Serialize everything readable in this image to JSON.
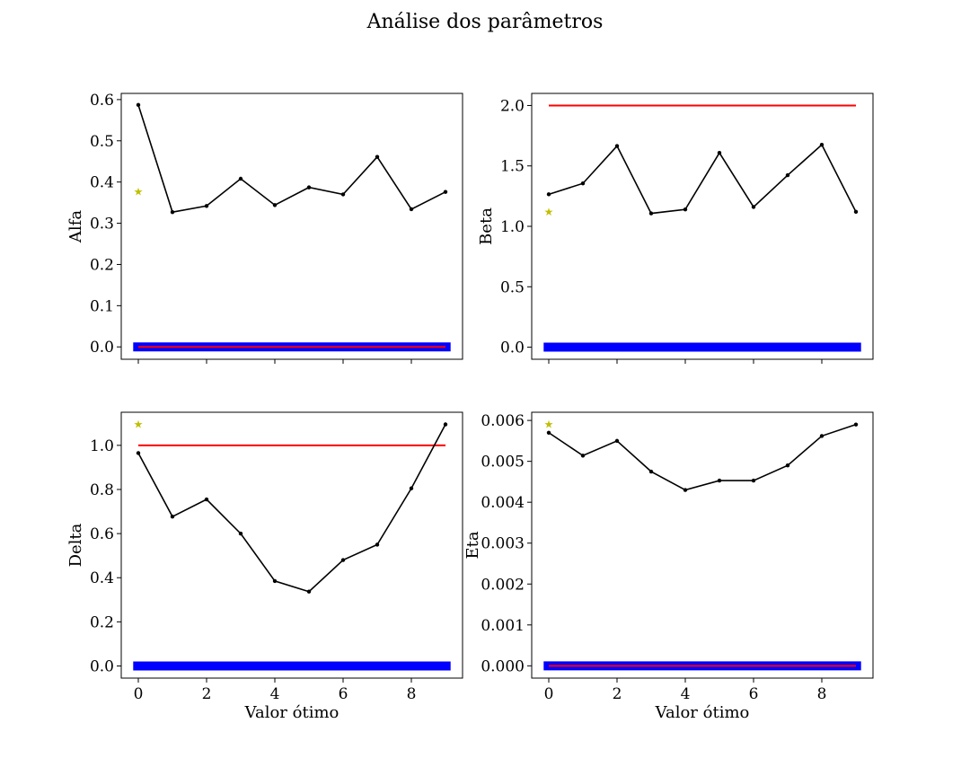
{
  "figure": {
    "title": "Análise dos parâmetros",
    "colors": {
      "series": "#000000",
      "upper": "#ff0000",
      "lower": "#0000ff",
      "reference": "#bfbf00"
    }
  },
  "chart_data": [
    {
      "type": "line",
      "title": "",
      "xlabel": "",
      "ylabel": "Alfa",
      "x": [
        0,
        1,
        2,
        3,
        4,
        5,
        6,
        7,
        8,
        9
      ],
      "values": [
        0.587,
        0.327,
        0.342,
        0.408,
        0.344,
        0.387,
        0.37,
        0.461,
        0.334,
        0.376
      ],
      "upper_line": 0.0,
      "lower_band": 0.0,
      "reference_point": {
        "x": 0,
        "y": 0.376
      },
      "xlim": [
        -0.5,
        9.5
      ],
      "ylim": [
        -0.03,
        0.615
      ],
      "yticks": [
        0.0,
        0.1,
        0.2,
        0.3,
        0.4,
        0.5,
        0.6
      ],
      "ytick_labels": [
        "0.0",
        "0.1",
        "0.2",
        "0.3",
        "0.4",
        "0.5",
        "0.6"
      ],
      "xticks": [
        0,
        2,
        4,
        6,
        8
      ],
      "xtick_labels": []
    },
    {
      "type": "line",
      "title": "",
      "xlabel": "",
      "ylabel": "Beta",
      "x": [
        0,
        1,
        2,
        3,
        4,
        5,
        6,
        7,
        8,
        9
      ],
      "values": [
        1.265,
        1.355,
        1.665,
        1.107,
        1.14,
        1.608,
        1.16,
        1.423,
        1.675,
        1.12
      ],
      "upper_line": 2.0,
      "lower_band": 0.0,
      "reference_point": {
        "x": 0,
        "y": 1.12
      },
      "xlim": [
        -0.5,
        9.5
      ],
      "ylim": [
        -0.1,
        2.1
      ],
      "yticks": [
        0.0,
        0.5,
        1.0,
        1.5,
        2.0
      ],
      "ytick_labels": [
        "0.0",
        "0.5",
        "1.0",
        "1.5",
        "2.0"
      ],
      "xticks": [
        0,
        2,
        4,
        6,
        8
      ],
      "xtick_labels": []
    },
    {
      "type": "line",
      "title": "",
      "xlabel": "Valor ótimo",
      "ylabel": "Delta",
      "x": [
        0,
        1,
        2,
        3,
        4,
        5,
        6,
        7,
        8,
        9
      ],
      "values": [
        0.965,
        0.677,
        0.755,
        0.6,
        0.385,
        0.337,
        0.48,
        0.55,
        0.805,
        1.095
      ],
      "upper_line": 1.0,
      "lower_band": 0.0,
      "reference_point": {
        "x": 0,
        "y": 1.095
      },
      "xlim": [
        -0.5,
        9.5
      ],
      "ylim": [
        -0.055,
        1.15
      ],
      "yticks": [
        0.0,
        0.2,
        0.4,
        0.6,
        0.8,
        1.0
      ],
      "ytick_labels": [
        "0.0",
        "0.2",
        "0.4",
        "0.6",
        "0.8",
        "1.0"
      ],
      "xticks": [
        0,
        2,
        4,
        6,
        8
      ],
      "xtick_labels": [
        "0",
        "2",
        "4",
        "6",
        "8"
      ]
    },
    {
      "type": "line",
      "title": "",
      "xlabel": "Valor ótimo",
      "ylabel": "Eta",
      "x": [
        0,
        1,
        2,
        3,
        4,
        5,
        6,
        7,
        8,
        9
      ],
      "values": [
        0.0057,
        0.00514,
        0.0055,
        0.00475,
        0.0043,
        0.00453,
        0.00453,
        0.0049,
        0.00562,
        0.0059
      ],
      "upper_line": 0.0,
      "lower_band": 0.0,
      "reference_point": {
        "x": 0,
        "y": 0.0059
      },
      "xlim": [
        -0.5,
        9.5
      ],
      "ylim": [
        -0.0003,
        0.0062
      ],
      "yticks": [
        0.0,
        0.001,
        0.002,
        0.003,
        0.004,
        0.005,
        0.006
      ],
      "ytick_labels": [
        "0.000",
        "0.001",
        "0.002",
        "0.003",
        "0.004",
        "0.005",
        "0.006"
      ],
      "xticks": [
        0,
        2,
        4,
        6,
        8
      ],
      "xtick_labels": [
        "0",
        "2",
        "4",
        "6",
        "8"
      ]
    }
  ]
}
